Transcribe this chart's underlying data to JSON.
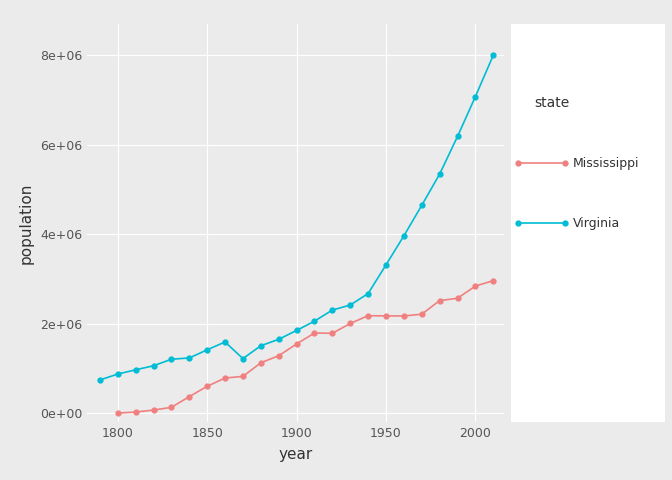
{
  "mississippi": {
    "years": [
      1800,
      1810,
      1820,
      1830,
      1840,
      1850,
      1860,
      1870,
      1880,
      1890,
      1900,
      1910,
      1920,
      1930,
      1940,
      1950,
      1960,
      1970,
      1980,
      1990,
      2000,
      2010
    ],
    "population": [
      7600,
      31306,
      75448,
      136621,
      375651,
      606526,
      791305,
      827922,
      1131597,
      1289600,
      1551270,
      1797114,
      1790618,
      2009821,
      2183796,
      2178914,
      2178141,
      2216912,
      2520638,
      2573216,
      2844658,
      2967297
    ]
  },
  "virginia": {
    "years": [
      1790,
      1800,
      1810,
      1820,
      1830,
      1840,
      1850,
      1860,
      1870,
      1880,
      1890,
      1900,
      1910,
      1920,
      1930,
      1940,
      1950,
      1960,
      1970,
      1980,
      1990,
      2000,
      2010
    ],
    "population": [
      747610,
      880200,
      974622,
      1065366,
      1211405,
      1239797,
      1421661,
      1596318,
      1225163,
      1512565,
      1655980,
      1854184,
      2061612,
      2309187,
      2421851,
      2677773,
      3318680,
      3966949,
      4648494,
      5346818,
      6187358,
      7078515,
      8001024
    ]
  },
  "mississippi_color": "#F08080",
  "virginia_color": "#00BCD4",
  "plot_bg_color": "#EBEBEB",
  "fig_bg_color": "#EBEBEB",
  "grid_color": "#FFFFFF",
  "xlabel": "year",
  "ylabel": "population",
  "legend_title": "state",
  "legend_labels": [
    "Mississippi",
    "Virginia"
  ],
  "ylim": [
    -200000,
    8700000
  ],
  "xlim": [
    1783,
    2016
  ],
  "yticks": [
    0,
    2000000,
    4000000,
    6000000,
    8000000
  ],
  "ytick_labels": [
    "0e+00",
    "2e+06",
    "4e+06",
    "6e+06",
    "8e+06"
  ],
  "xticks": [
    1800,
    1850,
    1900,
    1950,
    2000
  ],
  "marker": "o",
  "markersize": 3.5,
  "linewidth": 1.2
}
